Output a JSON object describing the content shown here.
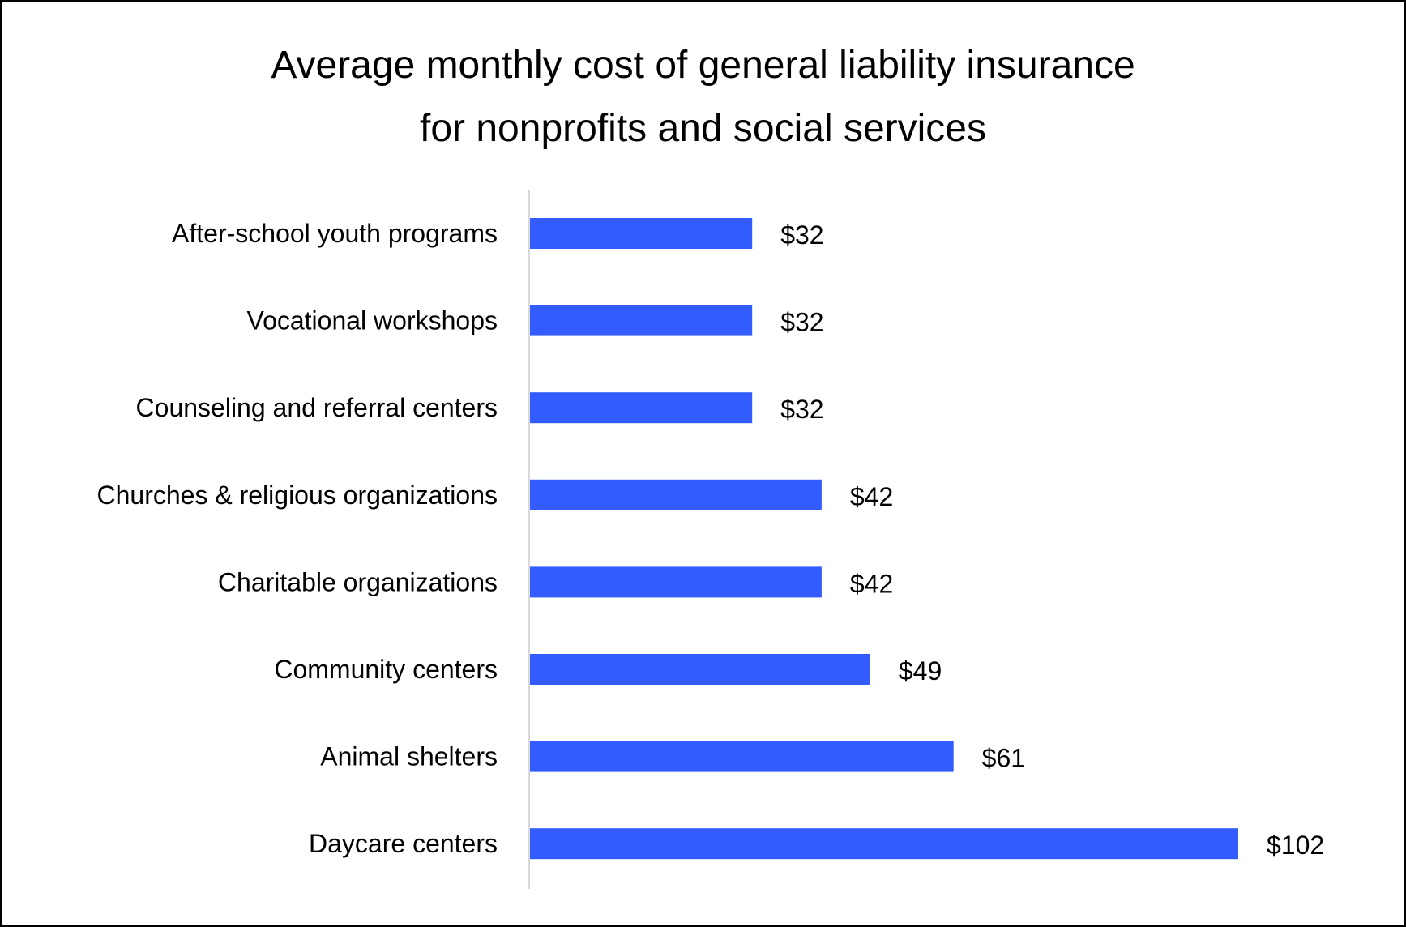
{
  "chart_data": {
    "type": "bar",
    "orientation": "horizontal",
    "title": "Average monthly cost of general liability insurance for nonprofits and social services",
    "title_lines": [
      "Average monthly cost of general liability insurance",
      "for nonprofits and social services"
    ],
    "categories": [
      "After-school youth programs",
      "Vocational workshops",
      "Counseling and referral centers",
      "Churches & religious organizations",
      "Charitable organizations",
      "Community centers",
      "Animal shelters",
      "Daycare centers"
    ],
    "values": [
      32,
      32,
      32,
      42,
      42,
      49,
      61,
      102
    ],
    "data_labels": [
      "$32",
      "$32",
      "$32",
      "$42",
      "$42",
      "$49",
      "$61",
      "$102"
    ],
    "xlabel": "",
    "ylabel": "",
    "xlim": [
      0,
      102
    ],
    "grid": false,
    "legend": "none",
    "colors": {
      "bar": "#335CFF",
      "axis": "#D9D9D9",
      "border": "#000000"
    }
  }
}
